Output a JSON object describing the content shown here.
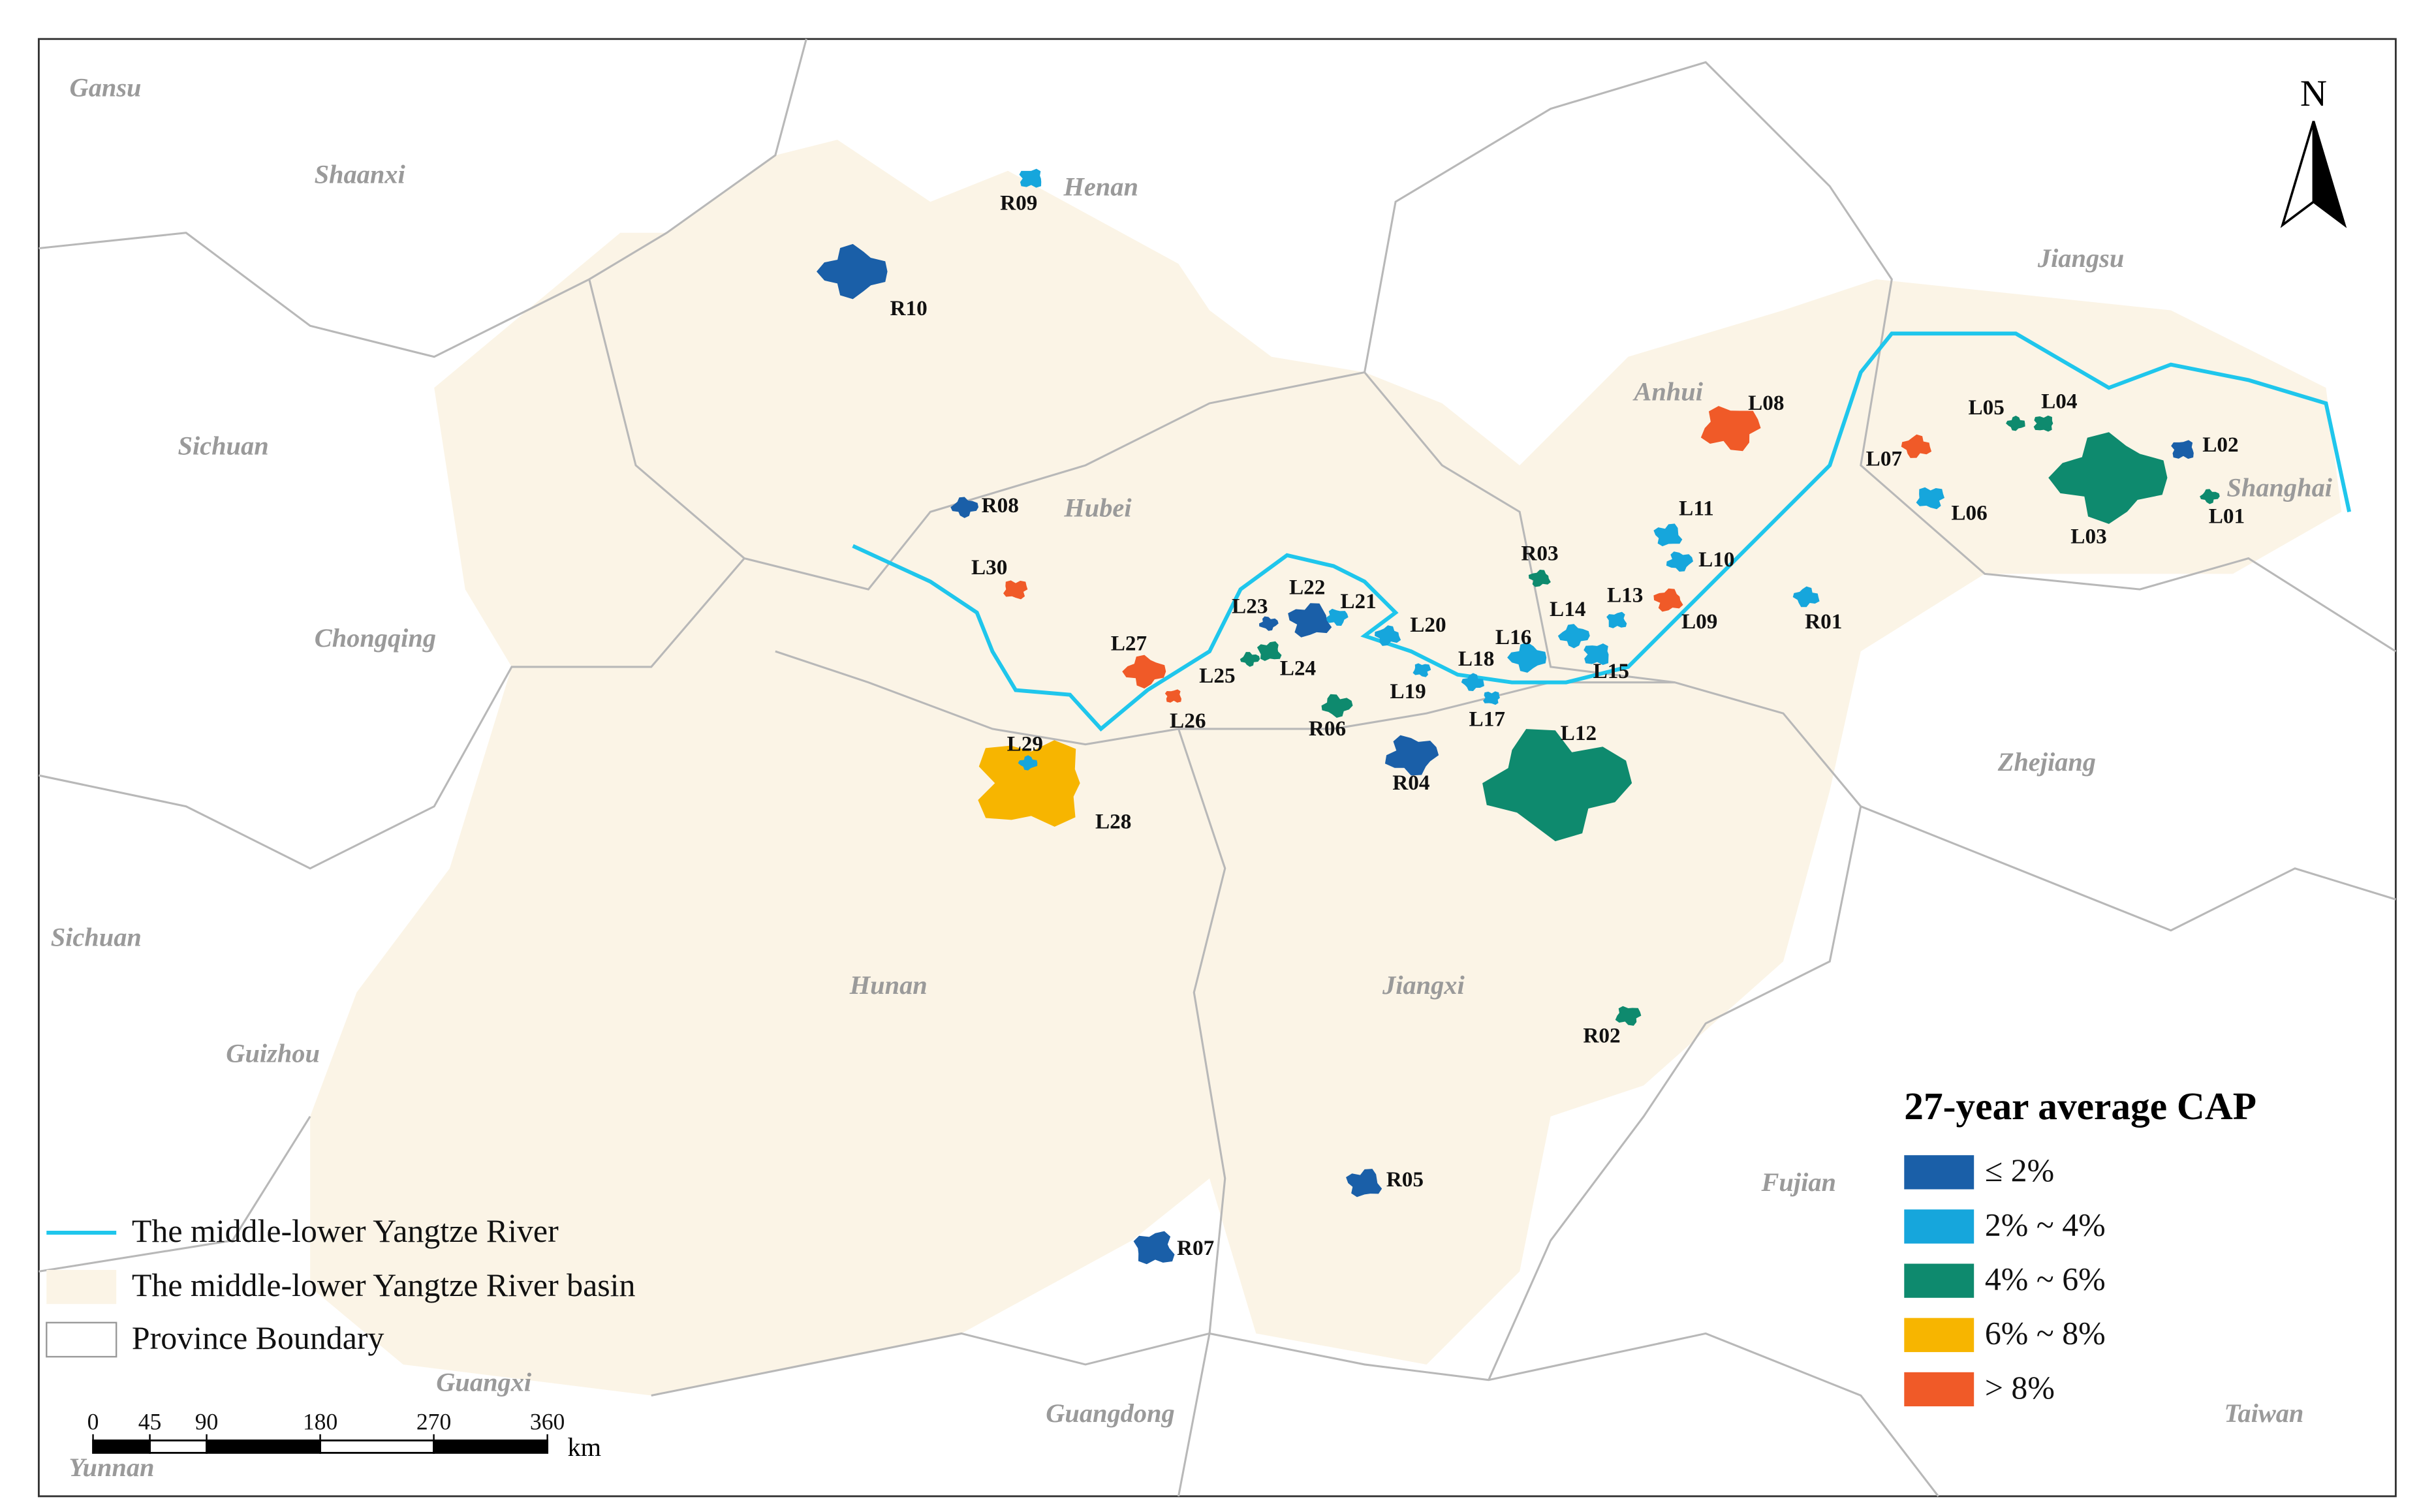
{
  "map": {
    "provinces": [
      "Gansu",
      "Shaanxi",
      "Henan",
      "Sichuan",
      "Hubei",
      "Chongqing",
      "Anhui",
      "Jiangsu",
      "Shanghai",
      "Zhejiang",
      "Hunan",
      "Jiangxi",
      "Sichuan",
      "Guizhou",
      "Fujian",
      "Guangxi",
      "Guangdong",
      "Taiwan",
      "Yunnan"
    ],
    "water_bodies": [
      {
        "id": "L01",
        "color": "#0e8a6e"
      },
      {
        "id": "L02",
        "color": "#1a5fa8"
      },
      {
        "id": "L03",
        "color": "#0e8a6e"
      },
      {
        "id": "L04",
        "color": "#0e8a6e"
      },
      {
        "id": "L05",
        "color": "#0e8a6e"
      },
      {
        "id": "L06",
        "color": "#16a6dc"
      },
      {
        "id": "L07",
        "color": "#f05a28"
      },
      {
        "id": "L08",
        "color": "#f05a28"
      },
      {
        "id": "L09",
        "color": "#f05a28"
      },
      {
        "id": "L10",
        "color": "#16a6dc"
      },
      {
        "id": "L11",
        "color": "#16a6dc"
      },
      {
        "id": "L12",
        "color": "#0e8a6e"
      },
      {
        "id": "L13",
        "color": "#16a6dc"
      },
      {
        "id": "L14",
        "color": "#16a6dc"
      },
      {
        "id": "L15",
        "color": "#16a6dc"
      },
      {
        "id": "L16",
        "color": "#16a6dc"
      },
      {
        "id": "L17",
        "color": "#16a6dc"
      },
      {
        "id": "L18",
        "color": "#16a6dc"
      },
      {
        "id": "L19",
        "color": "#16a6dc"
      },
      {
        "id": "L20",
        "color": "#16a6dc"
      },
      {
        "id": "L21",
        "color": "#16a6dc"
      },
      {
        "id": "L22",
        "color": "#1a5fa8"
      },
      {
        "id": "L23",
        "color": "#1a5fa8"
      },
      {
        "id": "L24",
        "color": "#0e8a6e"
      },
      {
        "id": "L25",
        "color": "#0e8a6e"
      },
      {
        "id": "L26",
        "color": "#f05a28"
      },
      {
        "id": "L27",
        "color": "#f05a28"
      },
      {
        "id": "L28",
        "color": "#f7b500"
      },
      {
        "id": "L29",
        "color": "#16a6dc"
      },
      {
        "id": "L30",
        "color": "#f05a28"
      },
      {
        "id": "R01",
        "color": "#16a6dc"
      },
      {
        "id": "R02",
        "color": "#0e8a6e"
      },
      {
        "id": "R03",
        "color": "#0e8a6e"
      },
      {
        "id": "R04",
        "color": "#1a5fa8"
      },
      {
        "id": "R05",
        "color": "#1a5fa8"
      },
      {
        "id": "R06",
        "color": "#0e8a6e"
      },
      {
        "id": "R07",
        "color": "#1a5fa8"
      },
      {
        "id": "R08",
        "color": "#1a5fa8"
      },
      {
        "id": "R09",
        "color": "#16a6dc"
      },
      {
        "id": "R10",
        "color": "#1a5fa8"
      }
    ],
    "legend": {
      "title": "27-year average CAP",
      "classes": [
        {
          "label": "≤ 2%",
          "color": "#1a5fa8"
        },
        {
          "label": "2% ~ 4%",
          "color": "#16a6dc"
        },
        {
          "label": "4% ~ 6%",
          "color": "#0e8a6e"
        },
        {
          "label": "6% ~ 8%",
          "color": "#f7b500"
        },
        {
          "label": "> 8%",
          "color": "#f05a28"
        }
      ]
    },
    "layers": {
      "river": "The middle-lower Yangtze River",
      "basin": "The middle-lower Yangtze River basin",
      "boundary": "Province Boundary"
    },
    "scale_bar": {
      "ticks": [
        0,
        45,
        90,
        180,
        270,
        360
      ],
      "unit": "km"
    },
    "north": "N"
  }
}
